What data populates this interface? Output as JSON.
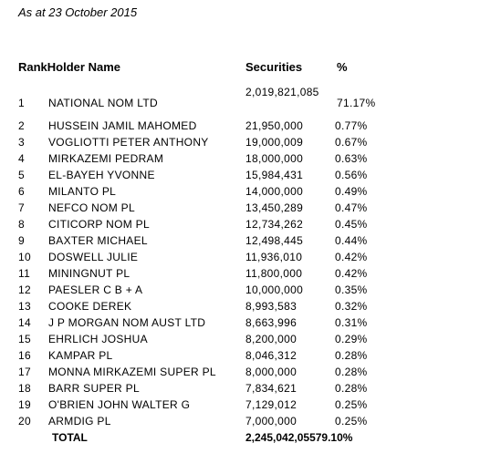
{
  "as_at": "As at 23 October 2015",
  "headers": {
    "rank_holder": "RankHolder Name",
    "securities": "Securities",
    "percent": "%"
  },
  "rows": [
    {
      "rank": "1",
      "name": "NATIONAL NOM LTD",
      "securities": "2,019,821,085",
      "percent": "71.17%"
    },
    {
      "rank": "2",
      "name": "HUSSEIN JAMIL MAHOMED",
      "securities": "21,950,000",
      "percent": "0.77%"
    },
    {
      "rank": "3",
      "name": "VOGLIOTTI PETER ANTHONY",
      "securities": "19,000,009",
      "percent": "0.67%"
    },
    {
      "rank": "4",
      "name": "MIRKAZEMI PEDRAM",
      "securities": "18,000,000",
      "percent": "0.63%"
    },
    {
      "rank": "5",
      "name": "EL-BAYEH YVONNE",
      "securities": "15,984,431",
      "percent": "0.56%"
    },
    {
      "rank": "6",
      "name": "MILANTO PL",
      "securities": "14,000,000",
      "percent": "0.49%"
    },
    {
      "rank": "7",
      "name": "NEFCO NOM PL",
      "securities": "13,450,289",
      "percent": "0.47%"
    },
    {
      "rank": "8",
      "name": "CITICORP NOM PL",
      "securities": "12,734,262",
      "percent": "0.45%"
    },
    {
      "rank": "9",
      "name": "BAXTER MICHAEL",
      "securities": "12,498,445",
      "percent": "0.44%"
    },
    {
      "rank": "10",
      "name": "DOSWELL JULIE",
      "securities": "11,936,010",
      "percent": "0.42%"
    },
    {
      "rank": "11",
      "name": "MININGNUT PL",
      "securities": "11,800,000",
      "percent": "0.42%"
    },
    {
      "rank": "12",
      "name": "PAESLER C B + A",
      "securities": "10,000,000",
      "percent": "0.35%"
    },
    {
      "rank": "13",
      "name": "COOKE DEREK",
      "securities": "8,993,583",
      "percent": "0.32%"
    },
    {
      "rank": "14",
      "name": "J P MORGAN NOM AUST LTD",
      "securities": "8,663,996",
      "percent": "0.31%"
    },
    {
      "rank": "15",
      "name": "EHRLICH JOSHUA",
      "securities": "8,200,000",
      "percent": "0.29%"
    },
    {
      "rank": "16",
      "name": "KAMPAR PL",
      "securities": "8,046,312",
      "percent": "0.28%"
    },
    {
      "rank": "17",
      "name": "MONNA MIRKAZEMI SUPER PL",
      "securities": "8,000,000",
      "percent": "0.28%"
    },
    {
      "rank": "18",
      "name": "BARR SUPER PL",
      "securities": "7,834,621",
      "percent": "0.28%"
    },
    {
      "rank": "19",
      "name": "O'BRIEN JOHN WALTER G",
      "securities": "7,129,012",
      "percent": "0.25%"
    },
    {
      "rank": "20",
      "name": "ARMDIG PL",
      "securities": "7,000,000",
      "percent": "0.25%"
    }
  ],
  "total": {
    "label": "TOTAL",
    "value": "2,245,042,05579.10%"
  }
}
